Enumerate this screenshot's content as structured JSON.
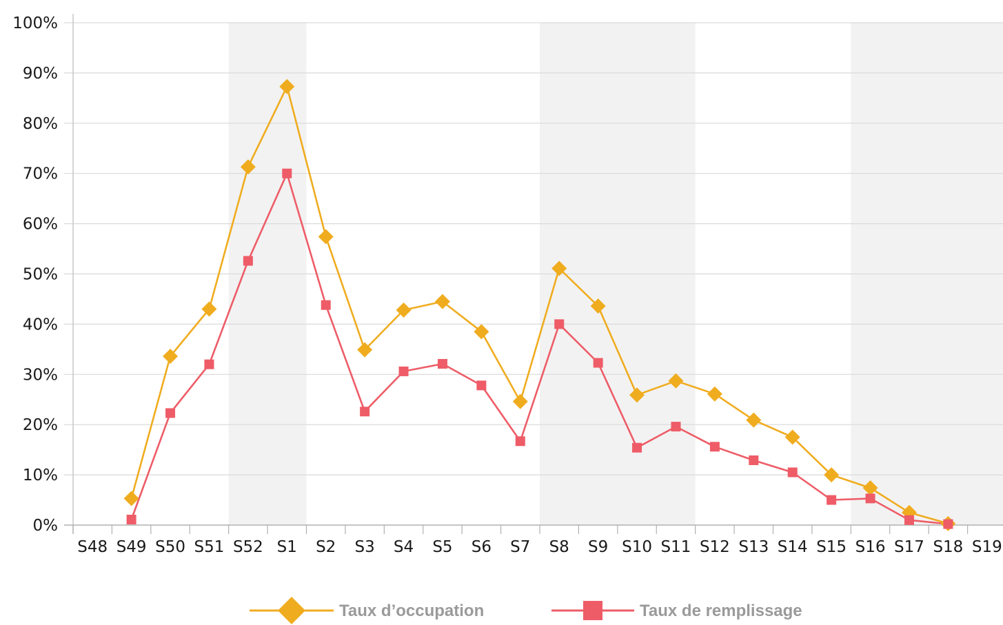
{
  "chart_data": {
    "type": "line",
    "title": "",
    "xlabel": "",
    "ylabel": "",
    "categories": [
      "S48",
      "S49",
      "S50",
      "S51",
      "S52",
      "S1",
      "S2",
      "S3",
      "S4",
      "S5",
      "S6",
      "S7",
      "S8",
      "S9",
      "S10",
      "S11",
      "S12",
      "S13",
      "S14",
      "S15",
      "S16",
      "S17",
      "S18",
      "S19"
    ],
    "y_ticks": [
      "0%",
      "10%",
      "20%",
      "30%",
      "40%",
      "50%",
      "60%",
      "70%",
      "80%",
      "90%",
      "100%"
    ],
    "ylim": [
      0,
      100
    ],
    "grid": true,
    "shaded_bands": [
      [
        "S52",
        "S1"
      ],
      [
        "S8",
        "S11"
      ],
      [
        "S16",
        "S19"
      ]
    ],
    "legend_position": "bottom",
    "series": [
      {
        "name": "Taux d’occupation",
        "marker": "diamond",
        "color": "#F0AC1F",
        "values": [
          null,
          5.3,
          33.6,
          43.0,
          71.3,
          87.3,
          57.4,
          34.9,
          42.8,
          44.5,
          38.5,
          24.6,
          51.1,
          43.6,
          25.9,
          28.7,
          26.1,
          20.9,
          17.5,
          10.0,
          7.4,
          2.5,
          0.3,
          null
        ]
      },
      {
        "name": "Taux de remplissage",
        "marker": "square",
        "color": "#EE5C67",
        "values": [
          null,
          1.1,
          22.3,
          32.0,
          52.6,
          70.0,
          43.8,
          22.6,
          30.6,
          32.1,
          27.8,
          16.7,
          40.0,
          32.3,
          15.4,
          19.6,
          15.6,
          12.9,
          10.5,
          5.0,
          5.3,
          1.0,
          0.2,
          null
        ]
      }
    ]
  }
}
